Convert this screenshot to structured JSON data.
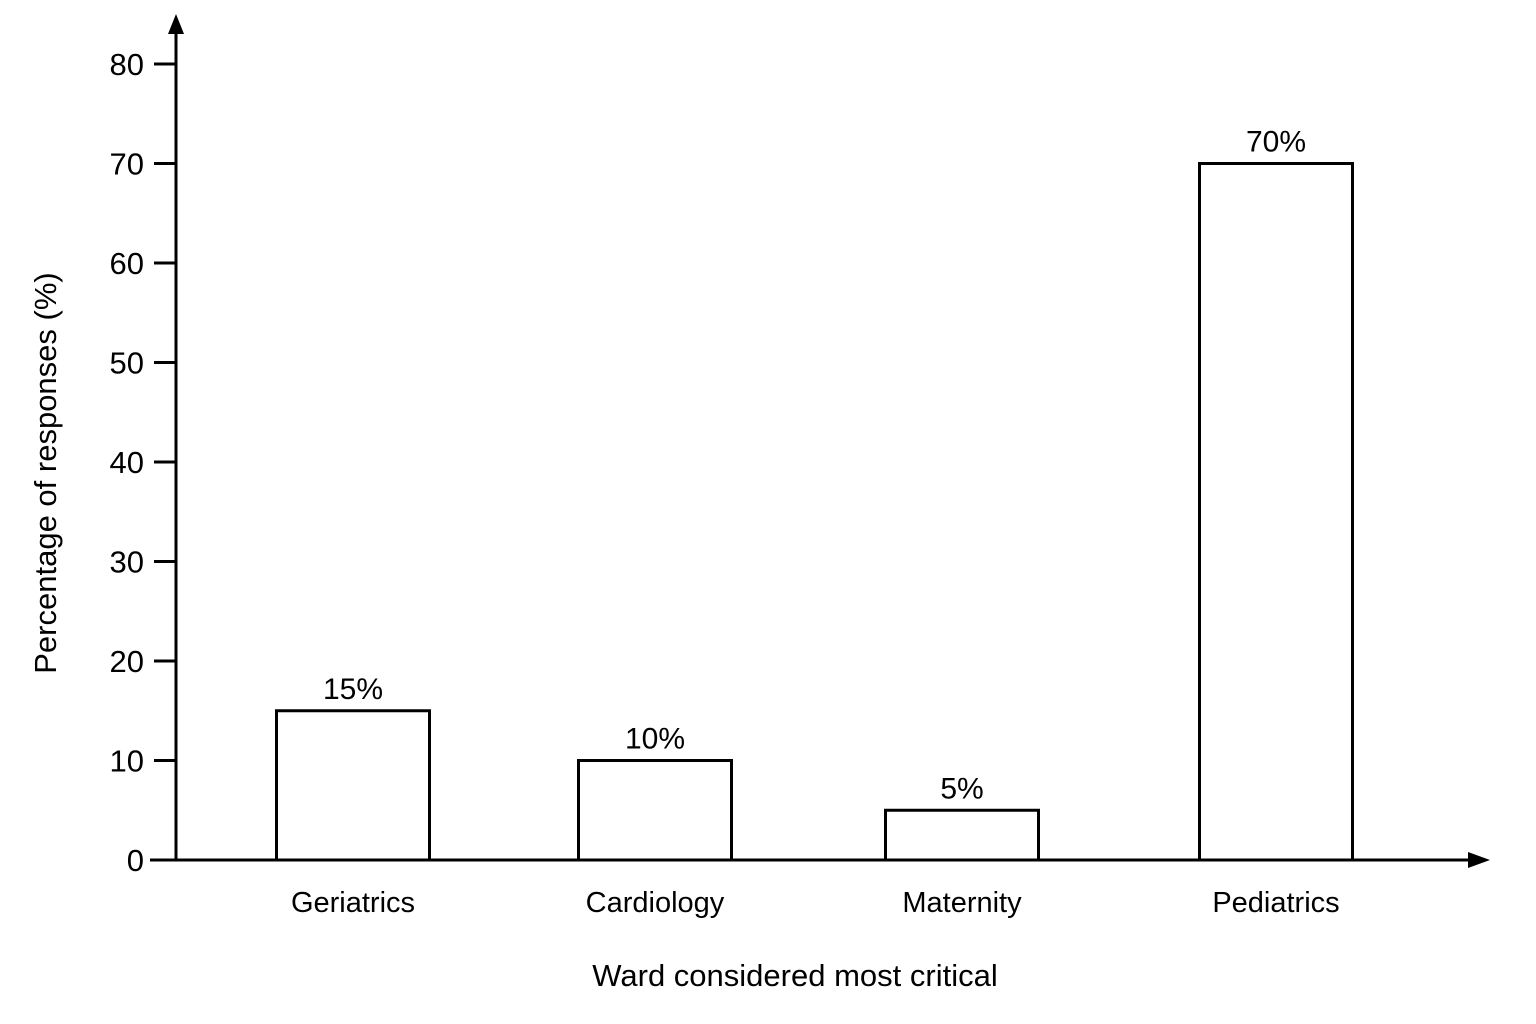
{
  "chart_data": {
    "type": "bar",
    "categories": [
      "Geriatrics",
      "Cardiology",
      "Maternity",
      "Pediatrics"
    ],
    "values": [
      15,
      10,
      5,
      70
    ],
    "data_labels": [
      "15%",
      "10%",
      "5%",
      "70%"
    ],
    "xlabel": "Ward considered most critical",
    "ylabel": "Percentage of responses (%)",
    "ylim": [
      0,
      80
    ],
    "yticks": [
      0,
      10,
      20,
      30,
      40,
      50,
      60,
      70,
      80
    ],
    "grid": false,
    "legend": "none",
    "bar_fill": "#ffffff",
    "bar_stroke": "#000000"
  }
}
